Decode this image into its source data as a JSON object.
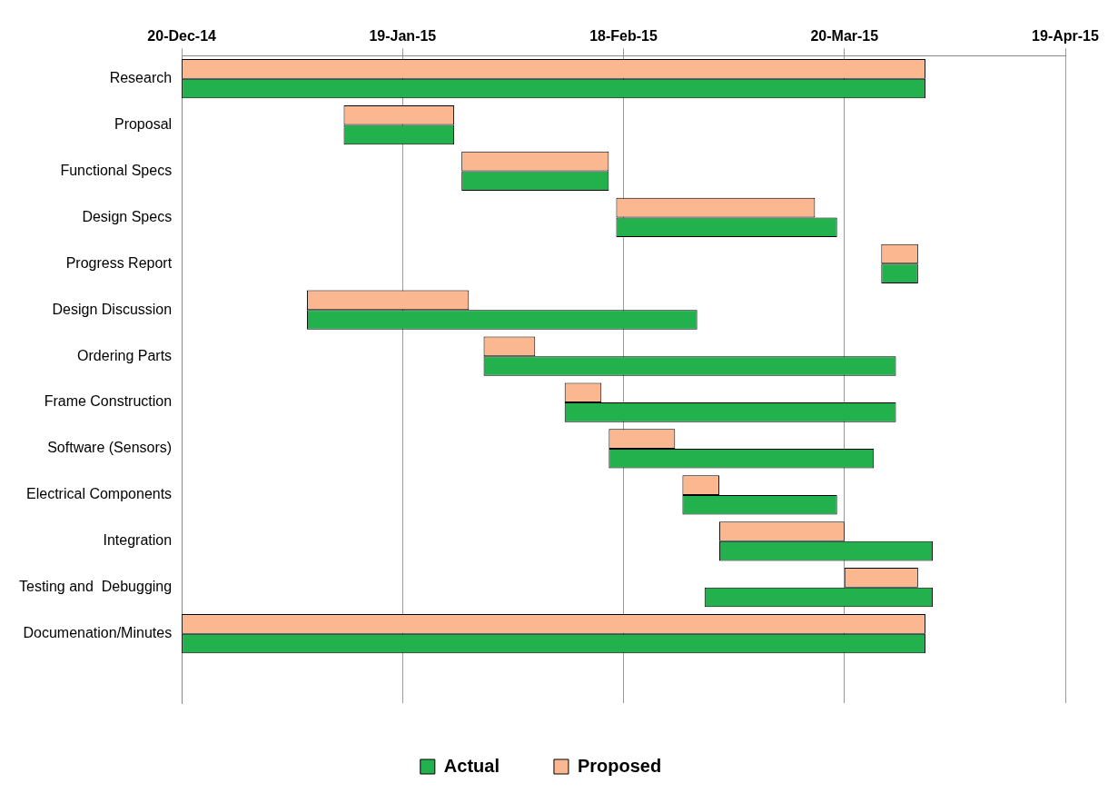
{
  "chart_data": {
    "type": "bar",
    "orientation": "horizontal",
    "categories": [
      "Research",
      "Proposal",
      "Functional Specs",
      "Design Specs",
      "Progress Report",
      "Design Discussion",
      "Ordering Parts",
      "Frame Construction",
      "Software (Sensors)",
      "Electrical Components",
      "Integration",
      "Testing and  Debugging",
      "Documenation/Minutes",
      null
    ],
    "series": [
      {
        "name": "Proposed",
        "color": "#fbb78f",
        "base": [
          16424,
          16446,
          16462,
          16483,
          16519,
          16441,
          16465,
          16476,
          16482,
          16492,
          16497,
          16514,
          16424,
          null
        ],
        "values": [
          101,
          15,
          20,
          27,
          5,
          22,
          7,
          5,
          9,
          5,
          17,
          10,
          101,
          null
        ]
      },
      {
        "name": "Actual",
        "color": "#22b14c",
        "base": [
          16424,
          16446,
          16462,
          16483,
          16519,
          16441,
          16465,
          16476,
          16482,
          16492,
          16497,
          16495,
          16424,
          null
        ],
        "values": [
          101,
          15,
          20,
          30,
          5,
          53,
          56,
          45,
          36,
          21,
          29,
          31,
          101,
          null
        ]
      }
    ],
    "xlim": [
      "2014-12-20",
      "2015-04-19"
    ],
    "xticks": [
      {
        "value": "2014-12-20",
        "label": "20-Dec-14"
      },
      {
        "value": "2015-01-19",
        "label": "19-Jan-15"
      },
      {
        "value": "2015-02-18",
        "label": "18-Feb-15"
      },
      {
        "value": "2015-03-20",
        "label": "20-Mar-15"
      },
      {
        "value": "2015-04-19",
        "label": "19-Apr-15"
      }
    ],
    "grid": "x",
    "legend": "bottom"
  }
}
